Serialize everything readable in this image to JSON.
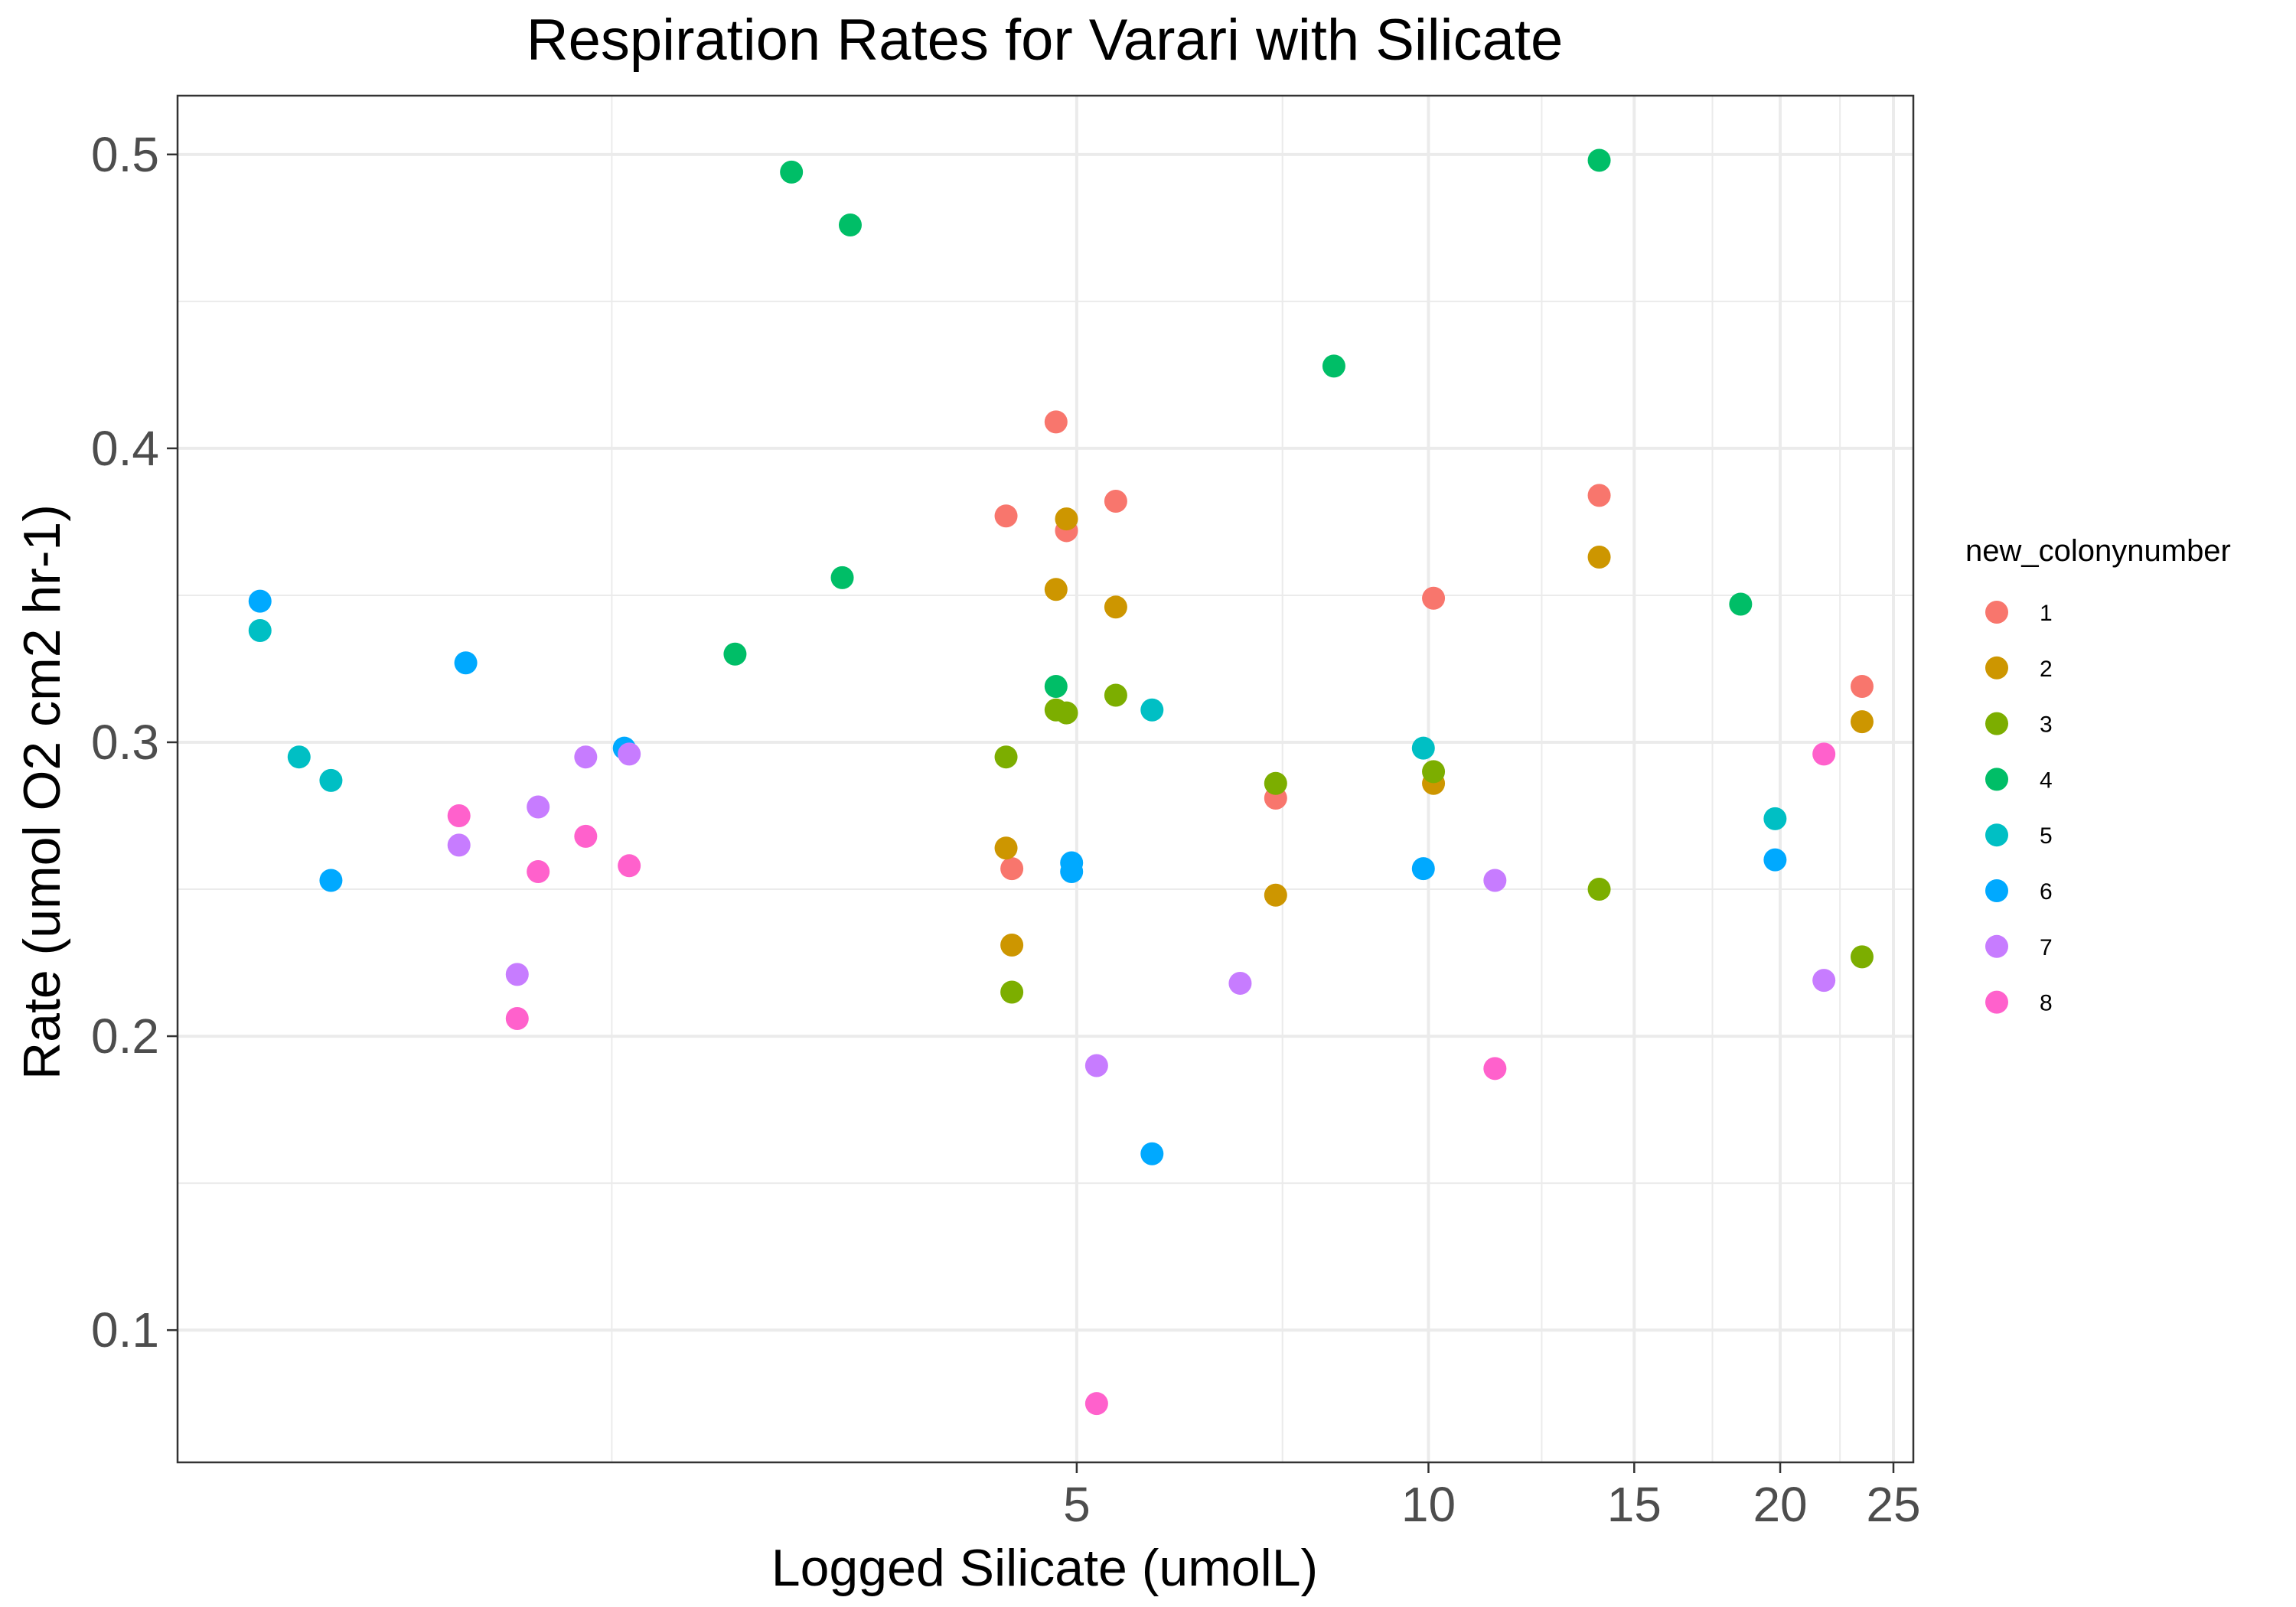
{
  "chart_data": {
    "type": "scatter",
    "title": "Respiration Rates for Varari with Silicate",
    "xlabel": "Logged Silicate (umolL)",
    "ylabel": "Rate (umol O2 cm2 hr-1)",
    "x_scale": "log",
    "xlim": [
      0.85,
      26
    ],
    "ylim": [
      0.055,
      0.52
    ],
    "x_ticks": [
      5,
      10,
      15,
      20,
      25
    ],
    "x_minor_gridlines": [
      2,
      7.5,
      12.5,
      17.5,
      22.5
    ],
    "y_ticks": [
      0.1,
      0.2,
      0.3,
      0.4,
      0.5
    ],
    "y_minor_gridlines": [
      0.15,
      0.25,
      0.35,
      0.45
    ],
    "grid": true,
    "legend": {
      "title": "new_colonynumber",
      "position": "right"
    },
    "series": [
      {
        "name": "1",
        "color": "#F8766D",
        "points": [
          {
            "x": 4.35,
            "y": 0.377
          },
          {
            "x": 4.4,
            "y": 0.257
          },
          {
            "x": 4.8,
            "y": 0.409
          },
          {
            "x": 4.9,
            "y": 0.372
          },
          {
            "x": 5.4,
            "y": 0.382
          },
          {
            "x": 7.4,
            "y": 0.281
          },
          {
            "x": 10.1,
            "y": 0.349
          },
          {
            "x": 14.0,
            "y": 0.384
          },
          {
            "x": 23.5,
            "y": 0.319
          }
        ]
      },
      {
        "name": "2",
        "color": "#CD9600",
        "points": [
          {
            "x": 4.35,
            "y": 0.264
          },
          {
            "x": 4.4,
            "y": 0.231
          },
          {
            "x": 4.8,
            "y": 0.352
          },
          {
            "x": 4.9,
            "y": 0.376
          },
          {
            "x": 5.4,
            "y": 0.346
          },
          {
            "x": 7.4,
            "y": 0.248
          },
          {
            "x": 10.1,
            "y": 0.286
          },
          {
            "x": 14.0,
            "y": 0.363
          },
          {
            "x": 23.5,
            "y": 0.307
          }
        ]
      },
      {
        "name": "3",
        "color": "#7CAE00",
        "points": [
          {
            "x": 4.35,
            "y": 0.295
          },
          {
            "x": 4.4,
            "y": 0.215
          },
          {
            "x": 4.8,
            "y": 0.311
          },
          {
            "x": 4.9,
            "y": 0.31
          },
          {
            "x": 5.4,
            "y": 0.316
          },
          {
            "x": 7.4,
            "y": 0.286
          },
          {
            "x": 10.1,
            "y": 0.29
          },
          {
            "x": 14.0,
            "y": 0.25
          },
          {
            "x": 23.5,
            "y": 0.227
          }
        ]
      },
      {
        "name": "4",
        "color": "#00BE67",
        "points": [
          {
            "x": 2.55,
            "y": 0.33
          },
          {
            "x": 2.85,
            "y": 0.494
          },
          {
            "x": 3.15,
            "y": 0.356
          },
          {
            "x": 3.2,
            "y": 0.476
          },
          {
            "x": 4.8,
            "y": 0.319
          },
          {
            "x": 8.3,
            "y": 0.428
          },
          {
            "x": 14.0,
            "y": 0.498
          },
          {
            "x": 18.5,
            "y": 0.347
          }
        ]
      },
      {
        "name": "5",
        "color": "#00BFC4",
        "points": [
          {
            "x": 1.0,
            "y": 0.338
          },
          {
            "x": 1.08,
            "y": 0.295
          },
          {
            "x": 1.15,
            "y": 0.287
          },
          {
            "x": 5.8,
            "y": 0.311
          },
          {
            "x": 9.9,
            "y": 0.298
          },
          {
            "x": 19.8,
            "y": 0.274
          }
        ]
      },
      {
        "name": "6",
        "color": "#00A9FF",
        "points": [
          {
            "x": 1.0,
            "y": 0.348
          },
          {
            "x": 1.15,
            "y": 0.253
          },
          {
            "x": 1.5,
            "y": 0.327
          },
          {
            "x": 2.05,
            "y": 0.298
          },
          {
            "x": 4.95,
            "y": 0.259
          },
          {
            "x": 4.95,
            "y": 0.256
          },
          {
            "x": 5.8,
            "y": 0.16
          },
          {
            "x": 9.9,
            "y": 0.257
          },
          {
            "x": 19.8,
            "y": 0.26
          }
        ]
      },
      {
        "name": "7",
        "color": "#C77CFF",
        "points": [
          {
            "x": 1.48,
            "y": 0.265
          },
          {
            "x": 1.66,
            "y": 0.221
          },
          {
            "x": 1.73,
            "y": 0.278
          },
          {
            "x": 1.9,
            "y": 0.295
          },
          {
            "x": 2.07,
            "y": 0.296
          },
          {
            "x": 5.2,
            "y": 0.19
          },
          {
            "x": 6.9,
            "y": 0.218
          },
          {
            "x": 11.4,
            "y": 0.253
          },
          {
            "x": 21.8,
            "y": 0.219
          }
        ]
      },
      {
        "name": "8",
        "color": "#FF61CC",
        "points": [
          {
            "x": 1.48,
            "y": 0.275
          },
          {
            "x": 1.66,
            "y": 0.206
          },
          {
            "x": 1.73,
            "y": 0.256
          },
          {
            "x": 1.9,
            "y": 0.268
          },
          {
            "x": 2.07,
            "y": 0.258
          },
          {
            "x": 5.2,
            "y": 0.075
          },
          {
            "x": 11.4,
            "y": 0.189
          },
          {
            "x": 21.8,
            "y": 0.296
          }
        ]
      }
    ]
  }
}
